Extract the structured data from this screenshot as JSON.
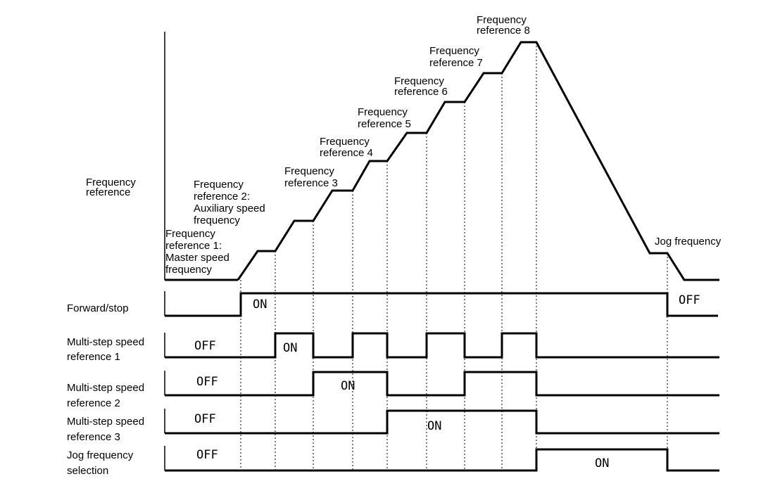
{
  "y_axis_label": [
    "Frequency",
    "reference"
  ],
  "step_labels": [
    {
      "lines": [
        "Frequency",
        "reference 1:",
        "Master speed",
        "frequency"
      ]
    },
    {
      "lines": [
        "Frequency",
        "reference 2:",
        "Auxiliary speed",
        "frequency"
      ]
    },
    {
      "lines": [
        "Frequency",
        "reference 3"
      ]
    },
    {
      "lines": [
        "Frequency",
        "reference 4"
      ]
    },
    {
      "lines": [
        "Frequency",
        "reference 5"
      ]
    },
    {
      "lines": [
        "Frequency",
        "reference 6"
      ]
    },
    {
      "lines": [
        "Frequency",
        "reference 7"
      ]
    },
    {
      "lines": [
        "Frequency",
        "reference 8"
      ]
    },
    {
      "lines": [
        "Jog frequency"
      ]
    }
  ],
  "signals": [
    {
      "name_lines": [
        "Forward/stop"
      ],
      "states": [
        {
          "text": "ON"
        },
        {
          "text": "OFF"
        }
      ]
    },
    {
      "name_lines": [
        "Multi-step  speed",
        "reference 1"
      ],
      "states": [
        {
          "text": "OFF"
        },
        {
          "text": "ON"
        }
      ]
    },
    {
      "name_lines": [
        "Multi-step  speed",
        "reference 2"
      ],
      "states": [
        {
          "text": "OFF"
        },
        {
          "text": "ON"
        }
      ]
    },
    {
      "name_lines": [
        "Multi-step  speed",
        "reference 3"
      ],
      "states": [
        {
          "text": "OFF"
        },
        {
          "text": "ON"
        }
      ]
    },
    {
      "name_lines": [
        "Jog     frequency",
        "selection"
      ],
      "states": [
        {
          "text": "OFF"
        },
        {
          "text": "ON"
        }
      ]
    }
  ]
}
